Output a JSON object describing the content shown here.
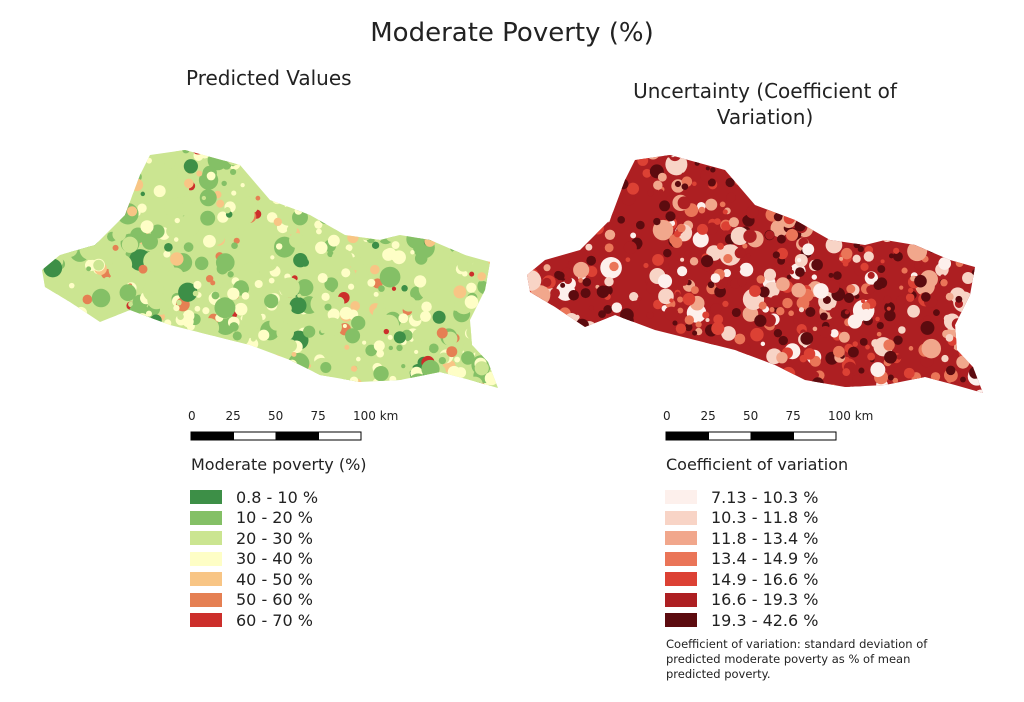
{
  "title": "Moderate Poverty (%)",
  "left_panel": {
    "title": "Predicted Values",
    "scale_bar": {
      "ticks": [
        "0",
        "25",
        "50",
        "75",
        "100 km"
      ]
    },
    "legend": {
      "title": "Moderate poverty (%)",
      "items": [
        {
          "label": "0.8 - 10 %",
          "color": "#3d8f47"
        },
        {
          "label": "10 - 20 %",
          "color": "#84c066"
        },
        {
          "label": "20 - 30 %",
          "color": "#cbe591"
        },
        {
          "label": "30 - 40 %",
          "color": "#fefec6"
        },
        {
          "label": "40 - 50 %",
          "color": "#f8c585"
        },
        {
          "label": "50 - 60 %",
          "color": "#e58053"
        },
        {
          "label": "60 - 70 %",
          "color": "#cc2f2b"
        }
      ]
    }
  },
  "right_panel": {
    "title": "Uncertainty (Coefficient of Variation)",
    "scale_bar": {
      "ticks": [
        "0",
        "25",
        "50",
        "75",
        "100 km"
      ]
    },
    "legend": {
      "title": "Coefficient of variation",
      "items": [
        {
          "label": "7.13 - 10.3 %",
          "color": "#fdf0ec"
        },
        {
          "label": "10.3 - 11.8 %",
          "color": "#f8d4c6"
        },
        {
          "label": "11.8 - 13.4 %",
          "color": "#f1a78c"
        },
        {
          "label": "13.4 - 14.9 %",
          "color": "#ea7558"
        },
        {
          "label": "14.9 - 16.6 %",
          "color": "#dc4134"
        },
        {
          "label": "16.6 - 19.3 %",
          "color": "#ad1f22"
        },
        {
          "label": "19.3 - 42.6 %",
          "color": "#5c0b0f"
        }
      ],
      "note": "Coefficient of variation: standard deviation of predicted moderate poverty as % of mean predicted poverty."
    }
  }
}
